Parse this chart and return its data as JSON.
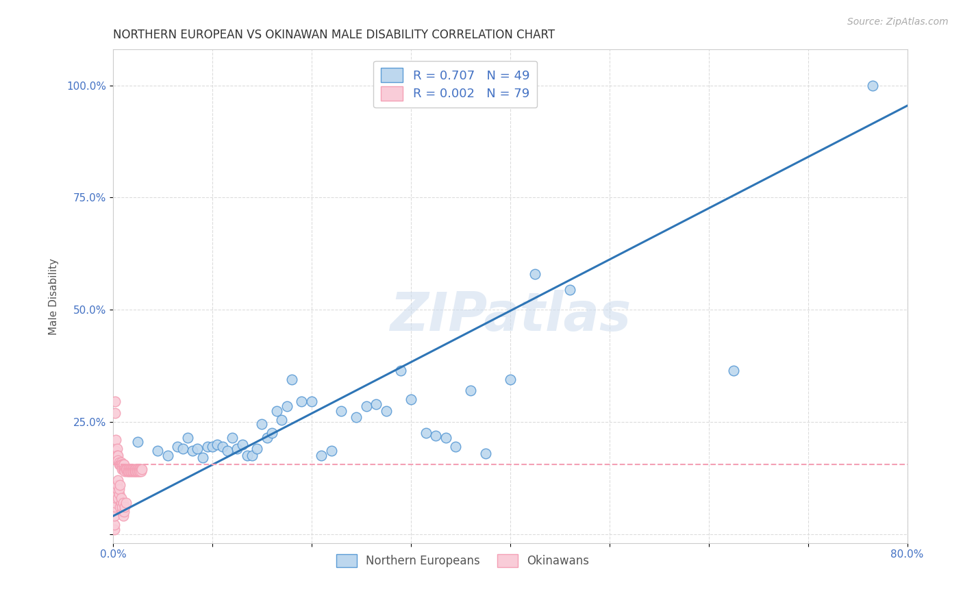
{
  "title": "NORTHERN EUROPEAN VS OKINAWAN MALE DISABILITY CORRELATION CHART",
  "source": "Source: ZipAtlas.com",
  "ylabel": "Male Disability",
  "watermark": "ZIPatlas",
  "xlim": [
    0.0,
    0.8
  ],
  "ylim": [
    -0.02,
    1.08
  ],
  "xticks": [
    0.0,
    0.1,
    0.2,
    0.3,
    0.4,
    0.5,
    0.6,
    0.7,
    0.8
  ],
  "yticks": [
    0.0,
    0.25,
    0.5,
    0.75,
    1.0
  ],
  "ne_color_edge": "#5b9bd5",
  "ne_color_fill": "#bdd7ee",
  "ok_color_edge": "#f4a0b5",
  "ok_color_fill": "#f9ccd8",
  "ne_R": 0.707,
  "ne_N": 49,
  "ok_R": 0.002,
  "ok_N": 79,
  "legend_label_ne": "Northern Europeans",
  "legend_label_ok": "Okinawans",
  "ne_line_color": "#2e75b6",
  "ok_line_color": "#f4a0b5",
  "ne_line_x": [
    0.0,
    0.8
  ],
  "ne_line_y": [
    0.04,
    0.955
  ],
  "ok_line_x": [
    0.0,
    0.8
  ],
  "ok_line_y": [
    0.155,
    0.155
  ],
  "ne_scatter_x": [
    0.025,
    0.045,
    0.055,
    0.065,
    0.07,
    0.075,
    0.08,
    0.085,
    0.09,
    0.095,
    0.1,
    0.105,
    0.11,
    0.115,
    0.12,
    0.125,
    0.13,
    0.135,
    0.14,
    0.145,
    0.15,
    0.155,
    0.16,
    0.165,
    0.17,
    0.175,
    0.18,
    0.19,
    0.2,
    0.21,
    0.22,
    0.23,
    0.245,
    0.255,
    0.265,
    0.275,
    0.29,
    0.3,
    0.315,
    0.325,
    0.335,
    0.345,
    0.36,
    0.375,
    0.4,
    0.425,
    0.46,
    0.625,
    0.765
  ],
  "ne_scatter_y": [
    0.205,
    0.185,
    0.175,
    0.195,
    0.19,
    0.215,
    0.185,
    0.19,
    0.17,
    0.195,
    0.195,
    0.2,
    0.195,
    0.185,
    0.215,
    0.19,
    0.2,
    0.175,
    0.175,
    0.19,
    0.245,
    0.215,
    0.225,
    0.275,
    0.255,
    0.285,
    0.345,
    0.295,
    0.295,
    0.175,
    0.185,
    0.275,
    0.26,
    0.285,
    0.29,
    0.275,
    0.365,
    0.3,
    0.225,
    0.22,
    0.215,
    0.195,
    0.32,
    0.18,
    0.345,
    0.58,
    0.545,
    0.365,
    1.0
  ],
  "ok_scatter_x": [
    0.002,
    0.002,
    0.003,
    0.003,
    0.004,
    0.004,
    0.005,
    0.005,
    0.006,
    0.006,
    0.007,
    0.007,
    0.008,
    0.008,
    0.009,
    0.009,
    0.01,
    0.01,
    0.011,
    0.011,
    0.012,
    0.012,
    0.013,
    0.013,
    0.014,
    0.014,
    0.015,
    0.015,
    0.016,
    0.016,
    0.017,
    0.017,
    0.018,
    0.018,
    0.019,
    0.019,
    0.02,
    0.02,
    0.021,
    0.021,
    0.022,
    0.022,
    0.023,
    0.023,
    0.024,
    0.024,
    0.025,
    0.025,
    0.026,
    0.026,
    0.027,
    0.027,
    0.028,
    0.028,
    0.029,
    0.001,
    0.001,
    0.001,
    0.002,
    0.002,
    0.003,
    0.003,
    0.004,
    0.004,
    0.005,
    0.005,
    0.006,
    0.006,
    0.007,
    0.007,
    0.008,
    0.008,
    0.009,
    0.009,
    0.01,
    0.01,
    0.011,
    0.012,
    0.013
  ],
  "ok_scatter_y": [
    0.295,
    0.27,
    0.21,
    0.185,
    0.19,
    0.175,
    0.175,
    0.165,
    0.155,
    0.16,
    0.155,
    0.155,
    0.16,
    0.155,
    0.155,
    0.145,
    0.155,
    0.145,
    0.155,
    0.145,
    0.145,
    0.14,
    0.145,
    0.145,
    0.14,
    0.145,
    0.145,
    0.14,
    0.145,
    0.14,
    0.145,
    0.14,
    0.145,
    0.14,
    0.145,
    0.14,
    0.145,
    0.14,
    0.145,
    0.14,
    0.145,
    0.14,
    0.145,
    0.14,
    0.145,
    0.14,
    0.145,
    0.14,
    0.145,
    0.14,
    0.145,
    0.14,
    0.145,
    0.14,
    0.145,
    0.01,
    0.02,
    0.04,
    0.06,
    0.07,
    0.08,
    0.09,
    0.1,
    0.11,
    0.12,
    0.08,
    0.09,
    0.1,
    0.11,
    0.06,
    0.07,
    0.08,
    0.05,
    0.06,
    0.07,
    0.04,
    0.05,
    0.06,
    0.07
  ],
  "background_color": "#ffffff",
  "grid_color": "#d9d9d9",
  "title_fontsize": 12,
  "axis_label_fontsize": 11,
  "tick_fontsize": 11,
  "source_fontsize": 10
}
